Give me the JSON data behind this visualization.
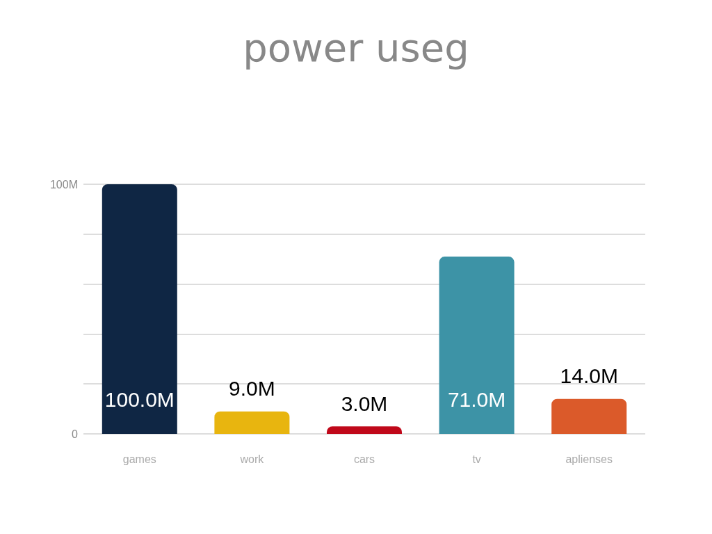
{
  "chart_data": {
    "type": "bar",
    "title": "power useg",
    "categories": [
      "games",
      "work",
      "cars",
      "tv",
      "aplienses"
    ],
    "values": [
      100,
      9,
      3,
      71,
      14
    ],
    "colors": [
      "#0f2644",
      "#e8b50f",
      "#c0081a",
      "#3d93a6",
      "#db5a2a"
    ],
    "value_labels": [
      "100.0M",
      "9.0M",
      "3.0M",
      "71.0M",
      "14.0M"
    ],
    "ylim": [
      0,
      100
    ],
    "yticks": [
      {
        "value": 0,
        "label": "0"
      },
      {
        "value": 20,
        "label": null
      },
      {
        "value": 40,
        "label": null
      },
      {
        "value": 60,
        "label": null
      },
      {
        "value": 80,
        "label": null
      },
      {
        "value": 100,
        "label": "100M"
      }
    ],
    "grid": "y"
  }
}
